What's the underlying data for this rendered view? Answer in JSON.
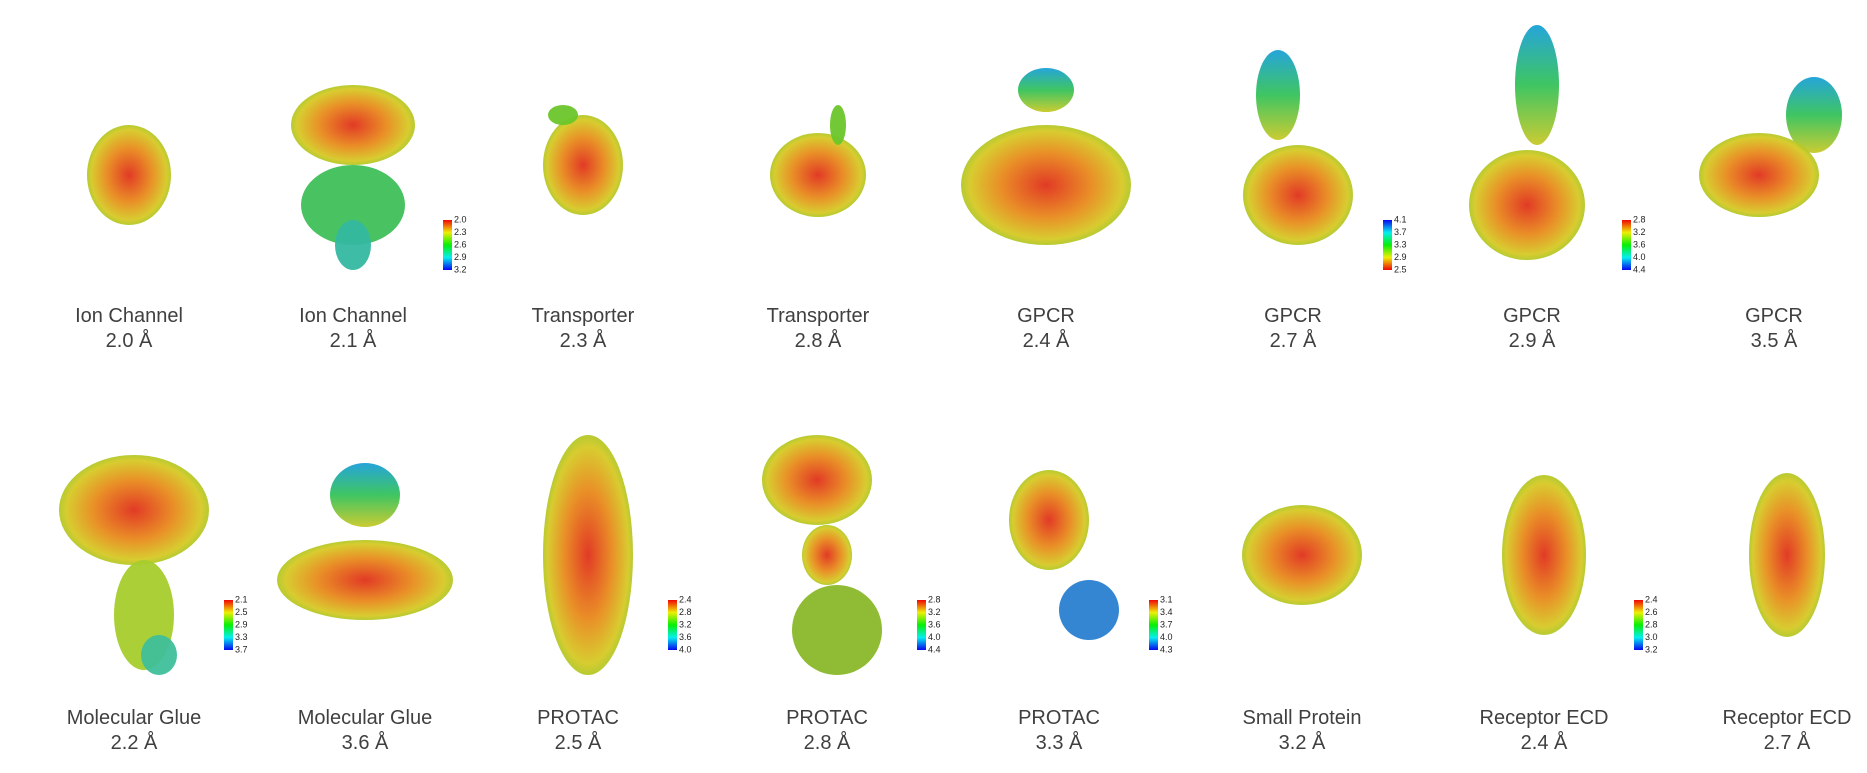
{
  "panels": [
    {
      "label": "Ion Channel",
      "resolution": "2.0 Å"
    },
    {
      "label": "Ion Channel",
      "resolution": "2.1 Å",
      "colorbar": [
        "2.0",
        "2.3",
        "2.6",
        "2.9",
        "3.2"
      ]
    },
    {
      "label": "Transporter",
      "resolution": "2.3 Å"
    },
    {
      "label": "Transporter",
      "resolution": "2.8 Å"
    },
    {
      "label": "GPCR",
      "resolution": "2.4 Å"
    },
    {
      "label": "GPCR",
      "resolution": "2.7 Å",
      "colorbar": [
        "4.1",
        "3.7",
        "3.3",
        "2.9",
        "2.5"
      ]
    },
    {
      "label": "GPCR",
      "resolution": "2.9 Å",
      "colorbar": [
        "2.8",
        "3.2",
        "3.6",
        "4.0",
        "4.4"
      ]
    },
    {
      "label": "GPCR",
      "resolution": "3.5 Å"
    },
    {
      "label": "Molecular Glue",
      "resolution": "2.2 Å",
      "colorbar": [
        "2.1",
        "2.5",
        "2.9",
        "3.3",
        "3.7"
      ]
    },
    {
      "label": "Molecular Glue",
      "resolution": "3.6 Å"
    },
    {
      "label": "PROTAC",
      "resolution": "2.5 Å",
      "colorbar": [
        "2.4",
        "2.8",
        "3.2",
        "3.6",
        "4.0"
      ]
    },
    {
      "label": "PROTAC",
      "resolution": "2.8 Å",
      "colorbar": [
        "2.8",
        "3.2",
        "3.6",
        "4.0",
        "4.4"
      ]
    },
    {
      "label": "PROTAC",
      "resolution": "3.3 Å",
      "colorbar": [
        "3.1",
        "3.4",
        "3.7",
        "4.0",
        "4.3"
      ]
    },
    {
      "label": "Small Protein",
      "resolution": "3.2 Å"
    },
    {
      "label": "Receptor ECD",
      "resolution": "2.4 Å",
      "colorbar": [
        "2.4",
        "2.6",
        "2.8",
        "3.0",
        "3.2"
      ]
    },
    {
      "label": "Receptor ECD",
      "resolution": "2.7 Å"
    }
  ]
}
